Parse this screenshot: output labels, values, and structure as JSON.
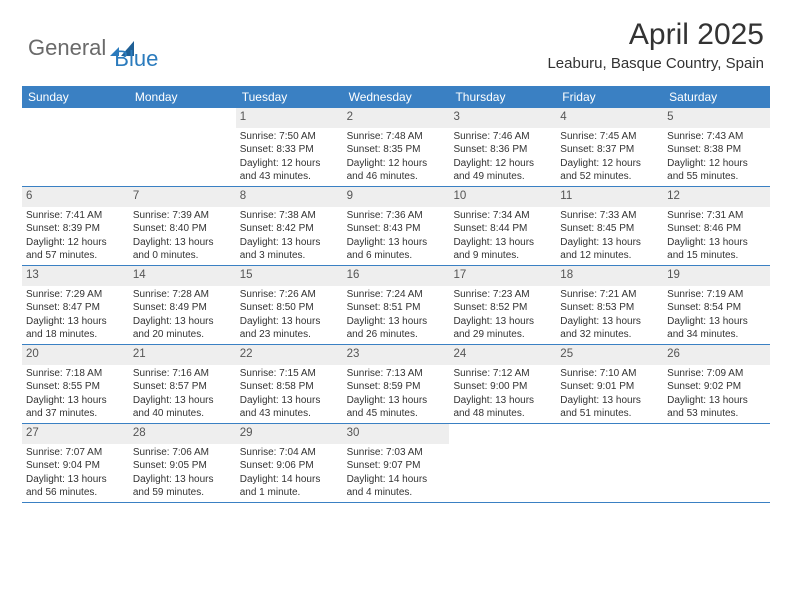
{
  "logo": {
    "text1": "General",
    "text2": "Blue"
  },
  "title": "April 2025",
  "subtitle": "Leaburu, Basque Country, Spain",
  "colors": {
    "header_bar": "#3a80c3",
    "daynum_bg": "#eeeeee",
    "logo_gray": "#6a6a6a",
    "logo_blue": "#2b7bbd",
    "text": "#333333"
  },
  "weekdays": [
    "Sunday",
    "Monday",
    "Tuesday",
    "Wednesday",
    "Thursday",
    "Friday",
    "Saturday"
  ],
  "weeks": [
    [
      null,
      null,
      {
        "n": "1",
        "sr": "Sunrise: 7:50 AM",
        "ss": "Sunset: 8:33 PM",
        "d1": "Daylight: 12 hours",
        "d2": "and 43 minutes."
      },
      {
        "n": "2",
        "sr": "Sunrise: 7:48 AM",
        "ss": "Sunset: 8:35 PM",
        "d1": "Daylight: 12 hours",
        "d2": "and 46 minutes."
      },
      {
        "n": "3",
        "sr": "Sunrise: 7:46 AM",
        "ss": "Sunset: 8:36 PM",
        "d1": "Daylight: 12 hours",
        "d2": "and 49 minutes."
      },
      {
        "n": "4",
        "sr": "Sunrise: 7:45 AM",
        "ss": "Sunset: 8:37 PM",
        "d1": "Daylight: 12 hours",
        "d2": "and 52 minutes."
      },
      {
        "n": "5",
        "sr": "Sunrise: 7:43 AM",
        "ss": "Sunset: 8:38 PM",
        "d1": "Daylight: 12 hours",
        "d2": "and 55 minutes."
      }
    ],
    [
      {
        "n": "6",
        "sr": "Sunrise: 7:41 AM",
        "ss": "Sunset: 8:39 PM",
        "d1": "Daylight: 12 hours",
        "d2": "and 57 minutes."
      },
      {
        "n": "7",
        "sr": "Sunrise: 7:39 AM",
        "ss": "Sunset: 8:40 PM",
        "d1": "Daylight: 13 hours",
        "d2": "and 0 minutes."
      },
      {
        "n": "8",
        "sr": "Sunrise: 7:38 AM",
        "ss": "Sunset: 8:42 PM",
        "d1": "Daylight: 13 hours",
        "d2": "and 3 minutes."
      },
      {
        "n": "9",
        "sr": "Sunrise: 7:36 AM",
        "ss": "Sunset: 8:43 PM",
        "d1": "Daylight: 13 hours",
        "d2": "and 6 minutes."
      },
      {
        "n": "10",
        "sr": "Sunrise: 7:34 AM",
        "ss": "Sunset: 8:44 PM",
        "d1": "Daylight: 13 hours",
        "d2": "and 9 minutes."
      },
      {
        "n": "11",
        "sr": "Sunrise: 7:33 AM",
        "ss": "Sunset: 8:45 PM",
        "d1": "Daylight: 13 hours",
        "d2": "and 12 minutes."
      },
      {
        "n": "12",
        "sr": "Sunrise: 7:31 AM",
        "ss": "Sunset: 8:46 PM",
        "d1": "Daylight: 13 hours",
        "d2": "and 15 minutes."
      }
    ],
    [
      {
        "n": "13",
        "sr": "Sunrise: 7:29 AM",
        "ss": "Sunset: 8:47 PM",
        "d1": "Daylight: 13 hours",
        "d2": "and 18 minutes."
      },
      {
        "n": "14",
        "sr": "Sunrise: 7:28 AM",
        "ss": "Sunset: 8:49 PM",
        "d1": "Daylight: 13 hours",
        "d2": "and 20 minutes."
      },
      {
        "n": "15",
        "sr": "Sunrise: 7:26 AM",
        "ss": "Sunset: 8:50 PM",
        "d1": "Daylight: 13 hours",
        "d2": "and 23 minutes."
      },
      {
        "n": "16",
        "sr": "Sunrise: 7:24 AM",
        "ss": "Sunset: 8:51 PM",
        "d1": "Daylight: 13 hours",
        "d2": "and 26 minutes."
      },
      {
        "n": "17",
        "sr": "Sunrise: 7:23 AM",
        "ss": "Sunset: 8:52 PM",
        "d1": "Daylight: 13 hours",
        "d2": "and 29 minutes."
      },
      {
        "n": "18",
        "sr": "Sunrise: 7:21 AM",
        "ss": "Sunset: 8:53 PM",
        "d1": "Daylight: 13 hours",
        "d2": "and 32 minutes."
      },
      {
        "n": "19",
        "sr": "Sunrise: 7:19 AM",
        "ss": "Sunset: 8:54 PM",
        "d1": "Daylight: 13 hours",
        "d2": "and 34 minutes."
      }
    ],
    [
      {
        "n": "20",
        "sr": "Sunrise: 7:18 AM",
        "ss": "Sunset: 8:55 PM",
        "d1": "Daylight: 13 hours",
        "d2": "and 37 minutes."
      },
      {
        "n": "21",
        "sr": "Sunrise: 7:16 AM",
        "ss": "Sunset: 8:57 PM",
        "d1": "Daylight: 13 hours",
        "d2": "and 40 minutes."
      },
      {
        "n": "22",
        "sr": "Sunrise: 7:15 AM",
        "ss": "Sunset: 8:58 PM",
        "d1": "Daylight: 13 hours",
        "d2": "and 43 minutes."
      },
      {
        "n": "23",
        "sr": "Sunrise: 7:13 AM",
        "ss": "Sunset: 8:59 PM",
        "d1": "Daylight: 13 hours",
        "d2": "and 45 minutes."
      },
      {
        "n": "24",
        "sr": "Sunrise: 7:12 AM",
        "ss": "Sunset: 9:00 PM",
        "d1": "Daylight: 13 hours",
        "d2": "and 48 minutes."
      },
      {
        "n": "25",
        "sr": "Sunrise: 7:10 AM",
        "ss": "Sunset: 9:01 PM",
        "d1": "Daylight: 13 hours",
        "d2": "and 51 minutes."
      },
      {
        "n": "26",
        "sr": "Sunrise: 7:09 AM",
        "ss": "Sunset: 9:02 PM",
        "d1": "Daylight: 13 hours",
        "d2": "and 53 minutes."
      }
    ],
    [
      {
        "n": "27",
        "sr": "Sunrise: 7:07 AM",
        "ss": "Sunset: 9:04 PM",
        "d1": "Daylight: 13 hours",
        "d2": "and 56 minutes."
      },
      {
        "n": "28",
        "sr": "Sunrise: 7:06 AM",
        "ss": "Sunset: 9:05 PM",
        "d1": "Daylight: 13 hours",
        "d2": "and 59 minutes."
      },
      {
        "n": "29",
        "sr": "Sunrise: 7:04 AM",
        "ss": "Sunset: 9:06 PM",
        "d1": "Daylight: 14 hours",
        "d2": "and 1 minute."
      },
      {
        "n": "30",
        "sr": "Sunrise: 7:03 AM",
        "ss": "Sunset: 9:07 PM",
        "d1": "Daylight: 14 hours",
        "d2": "and 4 minutes."
      },
      null,
      null,
      null
    ]
  ]
}
